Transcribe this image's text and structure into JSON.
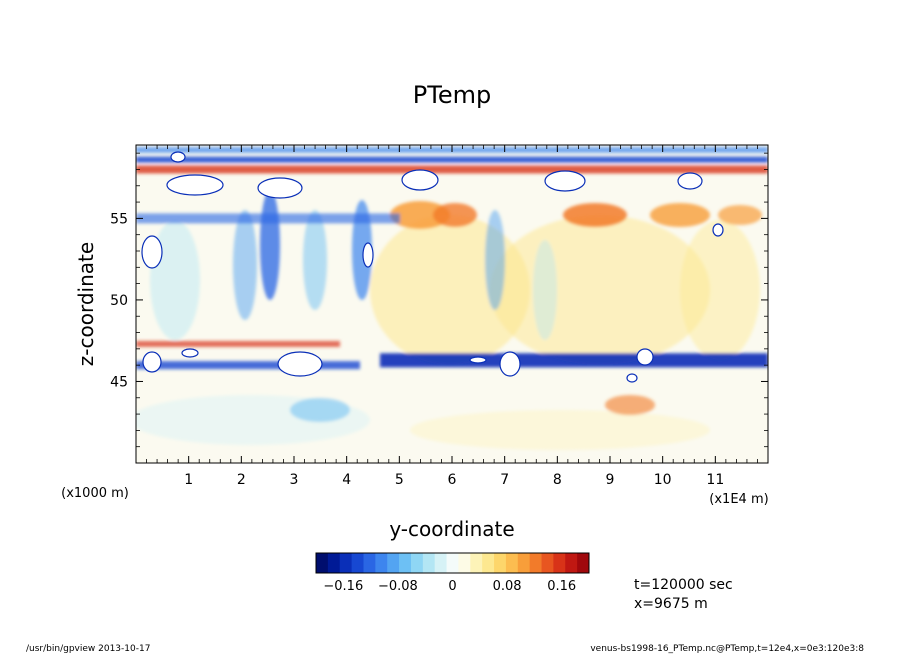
{
  "chart_data": {
    "type": "heatmap",
    "title": "PTemp",
    "xlabel": "y-coordinate",
    "ylabel": "z-coordinate",
    "x_range": [
      0,
      120000
    ],
    "y_range": [
      40,
      59.5
    ],
    "x_ticks": [
      "1",
      "2",
      "3",
      "4",
      "5",
      "6",
      "7",
      "8",
      "9",
      "10",
      "11"
    ],
    "x_tick_values": [
      10000,
      20000,
      30000,
      40000,
      50000,
      60000,
      70000,
      80000,
      90000,
      100000,
      110000
    ],
    "x_unit_label": "(x1E4 m)",
    "y_ticks": [
      "45",
      "50",
      "55"
    ],
    "y_tick_values": [
      45,
      50,
      55
    ],
    "y_unit_label": "(x1000 m)",
    "colorbar": {
      "range": [
        -0.2,
        0.2
      ],
      "ticks": [
        "−0.16",
        "−0.08",
        "0",
        "0.08",
        "0.16"
      ],
      "tick_values": [
        -0.16,
        -0.08,
        0,
        0.08,
        0.16
      ],
      "colors": [
        "#000e6e",
        "#001a96",
        "#0a2fb8",
        "#1748d2",
        "#2a66e4",
        "#3d85ee",
        "#53a4f2",
        "#6dc0f4",
        "#8fd6f4",
        "#b3e6f4",
        "#d6f2f6",
        "#f4fbfa",
        "#fdfbe6",
        "#fdf3b8",
        "#fde890",
        "#fdd66b",
        "#fcbd50",
        "#f89e3a",
        "#f27b2a",
        "#e85620",
        "#d83318",
        "#c01812",
        "#a0080c"
      ]
    },
    "description_features": {
      "bands_z": [
        46.3,
        55.0,
        58.0
      ]
    },
    "annotations": {
      "time": "t=120000 sec",
      "x_position": "x=9675 m"
    }
  },
  "footer": {
    "left": "/usr/bin/gpview  2013-10-17",
    "right": "venus-bs1998-16_PTemp.nc@PTemp,t=12e4,x=0e3:120e3:8"
  }
}
